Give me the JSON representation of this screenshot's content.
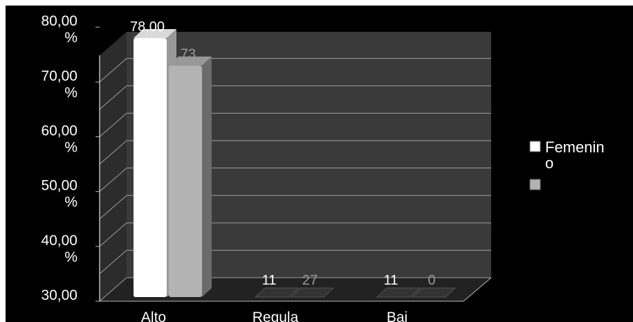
{
  "chart_data": {
    "type": "bar",
    "categories": [
      "Alto",
      "Regula",
      "Baj"
    ],
    "series": [
      {
        "name": "Femenin o",
        "values": [
          78,
          11,
          11
        ],
        "labels": [
          "78,00",
          "11",
          "11"
        ],
        "color": "#ffffff"
      },
      {
        "values": [
          73,
          27,
          0
        ],
        "labels": [
          "73",
          "27",
          "0"
        ],
        "color": "#b3b3b3"
      }
    ],
    "yaxis": {
      "ticks": [
        [
          "80,00",
          "%"
        ],
        [
          "70,00",
          "%"
        ],
        [
          "60,00",
          "%"
        ],
        [
          "50,00",
          "%"
        ],
        [
          "40,00",
          "%"
        ],
        [
          "30,00"
        ]
      ]
    },
    "legend": {
      "position": "right",
      "entries": [
        {
          "lines": [
            "Femenin",
            "o"
          ],
          "color": "#ffffff"
        },
        {
          "lines": [],
          "color": "#b3b3b3"
        }
      ]
    },
    "colors": {
      "background": "#000000",
      "wall": "#3a3a3a",
      "grid": "#a0a0a0",
      "floor": "#222222"
    }
  }
}
